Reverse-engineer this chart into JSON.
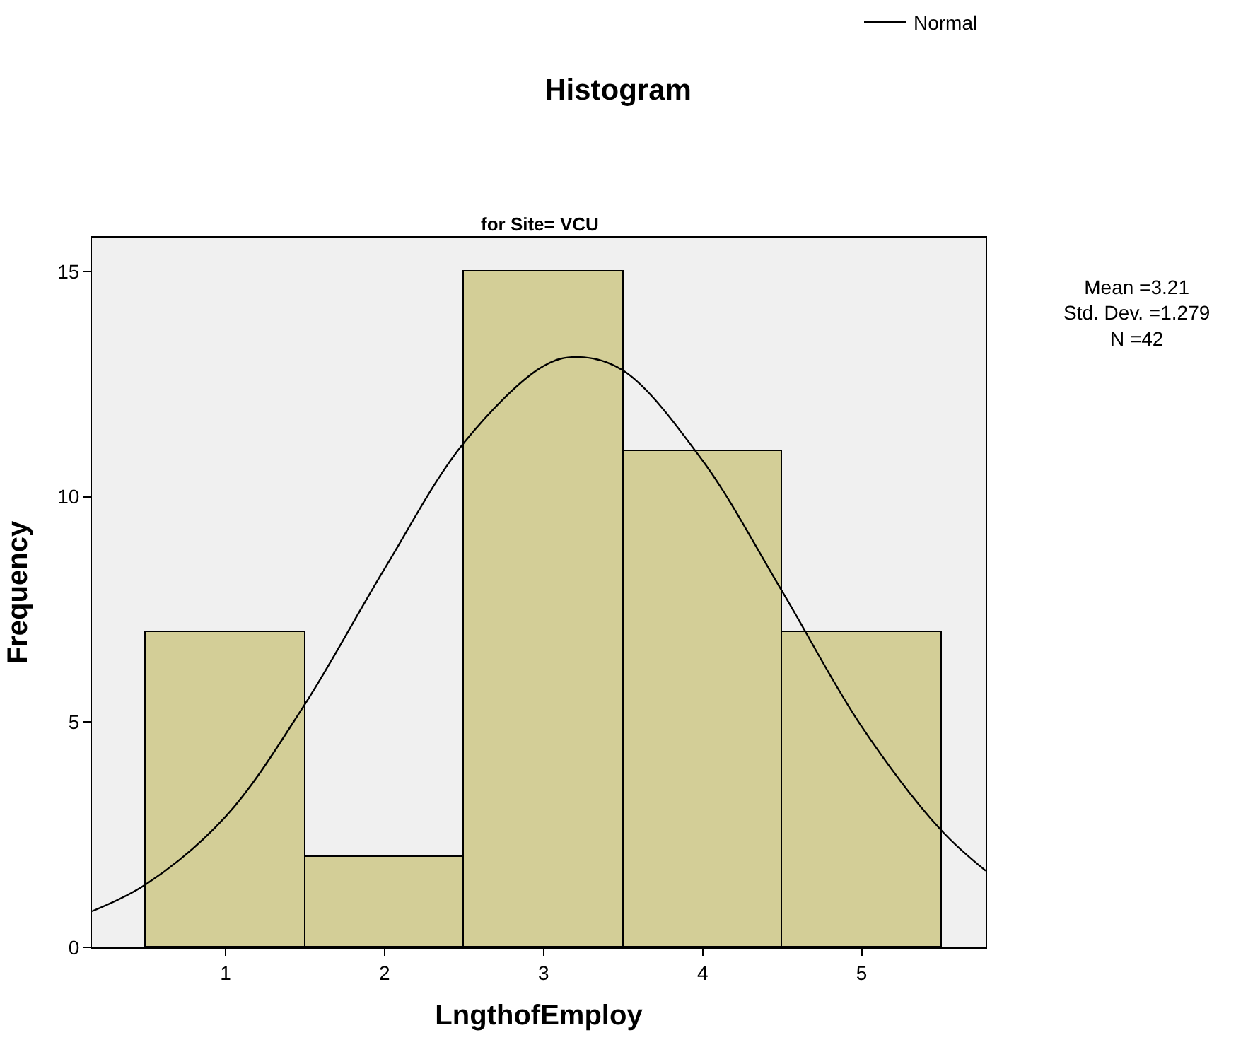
{
  "chart_data": {
    "type": "histogram",
    "title": "Histogram",
    "subtitle": "for Site= VCU",
    "xlabel": "LngthofEmploy",
    "ylabel": "Frequency",
    "xlim": [
      0.16,
      5.78
    ],
    "ylim": [
      0,
      15.75
    ],
    "xticks": [
      1,
      2,
      3,
      4,
      5
    ],
    "yticks": [
      0,
      5,
      10,
      15
    ],
    "grid": false,
    "legend": "top right",
    "annotations": [
      "Mean =3.21",
      "Std. Dev. =1.279",
      "N =42"
    ],
    "bins": [
      0.5,
      1.5,
      2.5,
      3.5,
      4.5,
      5.5
    ],
    "values": [
      7,
      2,
      15,
      11,
      7
    ],
    "color": "#d3ce97",
    "series": [
      {
        "type": "line",
        "name": "Normal",
        "color": "#000000",
        "marker": "none",
        "line_style": "solid",
        "x": [
          0.16,
          0.5,
          1,
          1.5,
          2,
          2.5,
          3,
          3.21,
          3.5,
          4,
          4.5,
          5,
          5.5,
          5.78
        ],
        "values": [
          0.8,
          1.4,
          2.9,
          5.4,
          8.4,
          11.2,
          12.9,
          13.1,
          12.8,
          10.8,
          7.9,
          4.9,
          2.6,
          1.7
        ]
      }
    ]
  }
}
